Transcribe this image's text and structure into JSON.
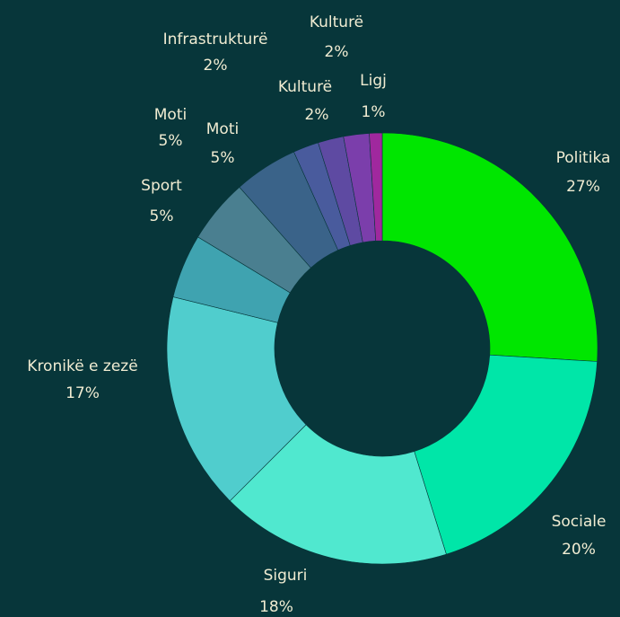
{
  "chart_data": {
    "type": "donut",
    "categories": [
      "Politika",
      "Sociale",
      "Siguri",
      "Kronikë e zezë",
      "Sport",
      "Moti",
      "Moti",
      "Infrastrukturë",
      "Kulturë",
      "Kulturë",
      "Ligj"
    ],
    "values": [
      27,
      20,
      18,
      17,
      5,
      5,
      5,
      2,
      2,
      2,
      1
    ],
    "value_labels": [
      "27%",
      "20%",
      "18%",
      "17%",
      "5%",
      "5%",
      "5%",
      "2%",
      "2%",
      "2%",
      "1%"
    ],
    "colors": [
      "#00e600",
      "#00e6a8",
      "#50e8cf",
      "#50cdcd",
      "#3fa3b0",
      "#4a7f90",
      "#3a6389",
      "#495b9d",
      "#5e4aa2",
      "#7b3eab",
      "#a0289e"
    ]
  }
}
